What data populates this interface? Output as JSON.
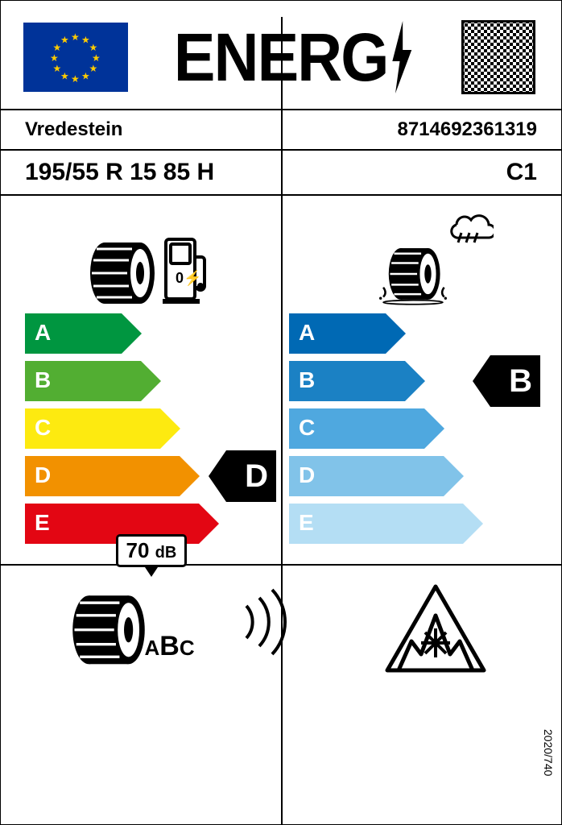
{
  "title": "ENERG",
  "brand": "Vredestein",
  "ean": "8714692361319",
  "tyre_size": "195/55 R 15 85 H",
  "tyre_class": "C1",
  "fuel": {
    "classes": [
      "A",
      "B",
      "C",
      "D",
      "E"
    ],
    "colors": [
      "#009640",
      "#52ae32",
      "#fdea10",
      "#f29100",
      "#e30613"
    ],
    "widths": [
      120,
      144,
      168,
      192,
      216
    ],
    "rating": "D",
    "rating_index": 3
  },
  "grip": {
    "classes": [
      "A",
      "B",
      "C",
      "D",
      "E"
    ],
    "colors": [
      "#0069b4",
      "#1b81c4",
      "#4fa8df",
      "#81c3e9",
      "#b4def4"
    ],
    "widths": [
      120,
      144,
      168,
      192,
      216
    ],
    "rating": "B",
    "rating_index": 1
  },
  "noise": {
    "value": "70",
    "unit": "dB",
    "classes": "ABC",
    "class_selected": "B"
  },
  "regulation": "2020/740"
}
